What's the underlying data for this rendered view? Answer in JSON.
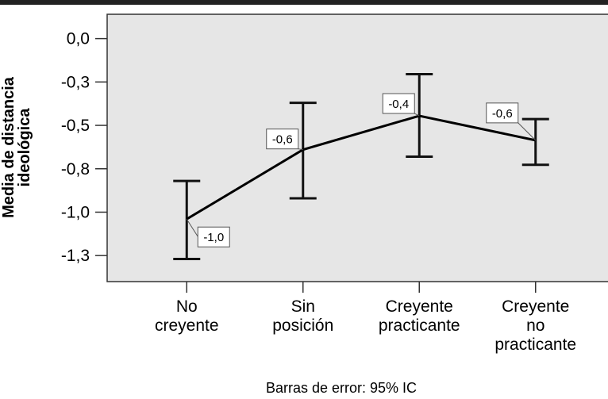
{
  "chart_data": {
    "type": "line",
    "y_label": "Media de distancia ideológica",
    "footer": "Barras de error: 95% IC",
    "categories": [
      "No\ncreyente",
      "Sin\nposición",
      "Creyente\npracticante",
      "Creyente\nno\npracticante"
    ],
    "values": [
      -1.04,
      -0.64,
      -0.445,
      -0.586
    ],
    "value_labels": [
      "-1,0",
      "-0,6",
      "-0,4",
      "-0,6"
    ],
    "error_low": [
      -1.27,
      -0.92,
      -0.68,
      -0.727
    ],
    "error_high": [
      -0.82,
      -0.37,
      -0.205,
      -0.464
    ],
    "color": "#000000",
    "ylim": [
      -1.4,
      0.14
    ],
    "yticks": [
      {
        "value": 0,
        "label": "0,0"
      },
      {
        "value": -0.25,
        "label": "-0,3"
      },
      {
        "value": -0.5,
        "label": "-0,5"
      },
      {
        "value": -0.75,
        "label": "-0,8"
      },
      {
        "value": -1,
        "label": "-1,0"
      },
      {
        "value": -1.25,
        "label": "-1,3"
      }
    ]
  }
}
